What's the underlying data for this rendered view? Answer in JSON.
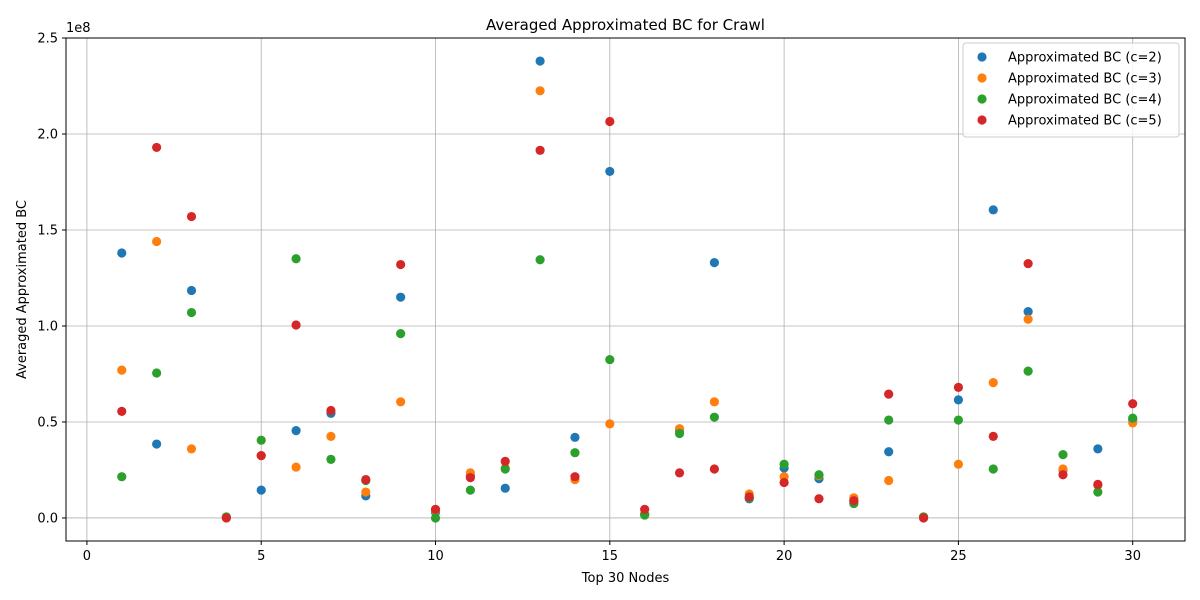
{
  "chart_data": {
    "type": "scatter",
    "title": "Averaged Approximated BC for Crawl",
    "xlabel": "Top 30 Nodes",
    "ylabel": "Averaged Approximated BC",
    "y_exponent_label": "1e8",
    "xlim": [
      -0.6,
      31.5
    ],
    "ylim": [
      -0.12,
      2.5
    ],
    "x_ticks": [
      0,
      5,
      10,
      15,
      20,
      25,
      30
    ],
    "x_tick_labels": [
      "0",
      "5",
      "10",
      "15",
      "20",
      "25",
      "30"
    ],
    "y_ticks": [
      0.0,
      0.5,
      1.0,
      1.5,
      2.0,
      2.5
    ],
    "y_tick_labels": [
      "0.0",
      "0.5",
      "1.0",
      "1.5",
      "2.0",
      "2.5"
    ],
    "grid": true,
    "legend_position": "top-right",
    "x": [
      1,
      2,
      3,
      4,
      5,
      6,
      7,
      8,
      9,
      10,
      11,
      12,
      13,
      14,
      15,
      16,
      17,
      18,
      19,
      20,
      21,
      22,
      23,
      24,
      25,
      26,
      27,
      28,
      29,
      30
    ],
    "series": [
      {
        "name": "Approximated BC (c=2)",
        "color": "#1f77b4",
        "values": [
          1.38,
          0.385,
          1.185,
          0.005,
          0.145,
          0.455,
          0.545,
          0.115,
          1.15,
          0.03,
          0.22,
          0.155,
          2.38,
          0.42,
          1.805,
          0.02,
          0.455,
          1.33,
          0.1,
          0.26,
          0.205,
          0.085,
          0.345,
          0.005,
          0.615,
          1.605,
          1.075,
          0.25,
          0.36,
          0.51
        ]
      },
      {
        "name": "Approximated BC (c=3)",
        "color": "#ff7f0e",
        "values": [
          0.77,
          1.44,
          0.36,
          0.005,
          0.325,
          0.265,
          0.425,
          0.135,
          0.605,
          0.04,
          0.235,
          0.26,
          2.225,
          0.2,
          0.49,
          0.02,
          0.465,
          0.605,
          0.125,
          0.215,
          0.22,
          0.105,
          0.195,
          0.005,
          0.28,
          0.705,
          1.035,
          0.255,
          0.17,
          0.495
        ]
      },
      {
        "name": "Approximated BC (c=4)",
        "color": "#2ca02c",
        "values": [
          0.215,
          0.755,
          1.07,
          0.005,
          0.405,
          1.35,
          0.305,
          0.195,
          0.96,
          0.0,
          0.145,
          0.255,
          1.345,
          0.34,
          0.825,
          0.015,
          0.44,
          0.525,
          0.105,
          0.28,
          0.225,
          0.075,
          0.51,
          0.005,
          0.51,
          0.255,
          0.765,
          0.33,
          0.135,
          0.52
        ]
      },
      {
        "name": "Approximated BC (c=5)",
        "color": "#d62728",
        "values": [
          0.555,
          1.93,
          1.57,
          0.0,
          0.325,
          1.005,
          0.56,
          0.2,
          1.32,
          0.045,
          0.21,
          0.295,
          1.915,
          0.215,
          2.065,
          0.045,
          0.235,
          0.255,
          0.11,
          0.185,
          0.1,
          0.09,
          0.645,
          0.0,
          0.68,
          0.425,
          1.325,
          0.225,
          0.175,
          0.595
        ]
      }
    ]
  }
}
